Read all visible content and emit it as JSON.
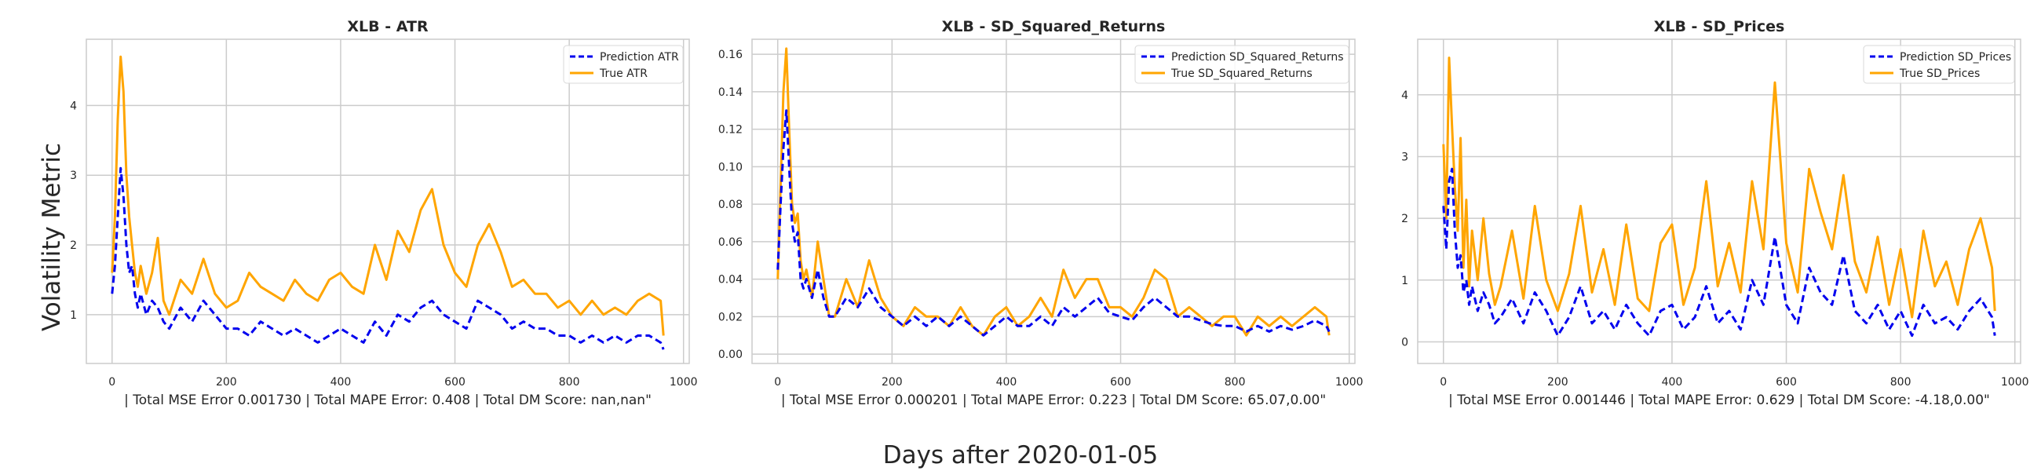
{
  "figure": {
    "supylabel": "Volatility Metric",
    "supxlabel": "Days after 2020-01-05"
  },
  "colors": {
    "prediction": "#0000ee",
    "true": "#ffa500",
    "grid": "#cccccc",
    "axes_border": "#cccccc"
  },
  "chart_data": [
    {
      "type": "line",
      "title": "XLB - ATR",
      "xlabel": "| Total MSE Error 0.001730 | Total MAPE Error: 0.408 | Total DM Score: nan,nan\"",
      "ylabel": "",
      "xlim": [
        -45,
        1010
      ],
      "ylim": [
        0.3,
        4.95
      ],
      "xticks": [
        0,
        200,
        400,
        600,
        800,
        1000
      ],
      "xtick_labels": [
        "0",
        "200",
        "400",
        "600",
        "800",
        "1000"
      ],
      "yticks": [
        1,
        2,
        3,
        4
      ],
      "ytick_labels": [
        "1",
        "2",
        "3",
        "4"
      ],
      "grid": true,
      "legend": "top-right",
      "series": [
        {
          "name": "Prediction ATR",
          "style": "dashed",
          "color": "#0000ee",
          "x": [
            0,
            5,
            10,
            15,
            20,
            25,
            30,
            35,
            40,
            45,
            50,
            60,
            70,
            80,
            90,
            100,
            120,
            140,
            160,
            180,
            200,
            220,
            240,
            260,
            280,
            300,
            320,
            340,
            360,
            380,
            400,
            420,
            440,
            460,
            480,
            500,
            520,
            540,
            560,
            580,
            600,
            620,
            640,
            660,
            680,
            700,
            720,
            740,
            760,
            780,
            800,
            820,
            840,
            860,
            880,
            900,
            920,
            940,
            960,
            965
          ],
          "y": [
            1.3,
            1.7,
            2.4,
            3.1,
            2.7,
            2.0,
            1.6,
            1.7,
            1.3,
            1.1,
            1.3,
            1.0,
            1.2,
            1.1,
            0.9,
            0.8,
            1.1,
            0.9,
            1.2,
            1.0,
            0.8,
            0.8,
            0.7,
            0.9,
            0.8,
            0.7,
            0.8,
            0.7,
            0.6,
            0.7,
            0.8,
            0.7,
            0.6,
            0.9,
            0.7,
            1.0,
            0.9,
            1.1,
            1.2,
            1.0,
            0.9,
            0.8,
            1.2,
            1.1,
            1.0,
            0.8,
            0.9,
            0.8,
            0.8,
            0.7,
            0.7,
            0.6,
            0.7,
            0.6,
            0.7,
            0.6,
            0.7,
            0.7,
            0.6,
            0.5
          ]
        },
        {
          "name": "True ATR",
          "style": "solid",
          "color": "#ffa500",
          "x": [
            0,
            5,
            10,
            15,
            20,
            25,
            30,
            35,
            40,
            45,
            50,
            60,
            70,
            80,
            90,
            100,
            120,
            140,
            160,
            180,
            200,
            220,
            240,
            260,
            280,
            300,
            320,
            340,
            360,
            380,
            400,
            420,
            440,
            460,
            480,
            500,
            520,
            540,
            560,
            580,
            600,
            620,
            640,
            660,
            680,
            700,
            720,
            740,
            760,
            780,
            800,
            820,
            840,
            860,
            880,
            900,
            920,
            940,
            960,
            965
          ],
          "y": [
            1.6,
            2.4,
            3.8,
            4.7,
            4.2,
            3.0,
            2.4,
            2.0,
            1.6,
            1.4,
            1.7,
            1.3,
            1.6,
            2.1,
            1.2,
            1.0,
            1.5,
            1.3,
            1.8,
            1.3,
            1.1,
            1.2,
            1.6,
            1.4,
            1.3,
            1.2,
            1.5,
            1.3,
            1.2,
            1.5,
            1.6,
            1.4,
            1.3,
            2.0,
            1.5,
            2.2,
            1.9,
            2.5,
            2.8,
            2.0,
            1.6,
            1.4,
            2.0,
            2.3,
            1.9,
            1.4,
            1.5,
            1.3,
            1.3,
            1.1,
            1.2,
            1.0,
            1.2,
            1.0,
            1.1,
            1.0,
            1.2,
            1.3,
            1.2,
            0.7
          ]
        }
      ]
    },
    {
      "type": "line",
      "title": "XLB - SD_Squared_Returns",
      "xlabel": "| Total MSE Error 0.000201 | Total MAPE Error: 0.223 | Total DM Score: 65.07,0.00\"",
      "ylabel": "",
      "xlim": [
        -45,
        1010
      ],
      "ylim": [
        -0.005,
        0.168
      ],
      "xticks": [
        0,
        200,
        400,
        600,
        800,
        1000
      ],
      "xtick_labels": [
        "0",
        "200",
        "400",
        "600",
        "800",
        "1000"
      ],
      "yticks": [
        0.0,
        0.02,
        0.04,
        0.06,
        0.08,
        0.1,
        0.12,
        0.14,
        0.16
      ],
      "ytick_labels": [
        "0.00",
        "0.02",
        "0.04",
        "0.06",
        "0.08",
        "0.10",
        "0.12",
        "0.14",
        "0.16"
      ],
      "grid": true,
      "legend": "top-right",
      "series": [
        {
          "name": "Prediction SD_Squared_Returns",
          "style": "dashed",
          "color": "#0000ee",
          "x": [
            0,
            5,
            10,
            15,
            20,
            25,
            30,
            35,
            40,
            45,
            50,
            60,
            70,
            80,
            90,
            100,
            120,
            140,
            160,
            180,
            200,
            220,
            240,
            260,
            280,
            300,
            320,
            340,
            360,
            380,
            400,
            420,
            440,
            460,
            480,
            500,
            520,
            540,
            560,
            580,
            600,
            620,
            640,
            660,
            680,
            700,
            720,
            740,
            760,
            780,
            800,
            820,
            840,
            860,
            880,
            900,
            920,
            940,
            960,
            965
          ],
          "y": [
            0.045,
            0.08,
            0.11,
            0.13,
            0.1,
            0.07,
            0.06,
            0.065,
            0.04,
            0.035,
            0.04,
            0.03,
            0.045,
            0.03,
            0.02,
            0.02,
            0.03,
            0.025,
            0.035,
            0.025,
            0.02,
            0.015,
            0.02,
            0.015,
            0.02,
            0.015,
            0.02,
            0.015,
            0.01,
            0.015,
            0.02,
            0.015,
            0.015,
            0.02,
            0.015,
            0.025,
            0.02,
            0.025,
            0.03,
            0.022,
            0.02,
            0.018,
            0.025,
            0.03,
            0.025,
            0.02,
            0.02,
            0.018,
            0.016,
            0.015,
            0.015,
            0.012,
            0.015,
            0.012,
            0.015,
            0.013,
            0.015,
            0.018,
            0.015,
            0.012
          ]
        },
        {
          "name": "True SD_Squared_Returns",
          "style": "solid",
          "color": "#ffa500",
          "x": [
            0,
            5,
            10,
            15,
            20,
            25,
            30,
            35,
            40,
            45,
            50,
            60,
            70,
            80,
            90,
            100,
            120,
            140,
            160,
            180,
            200,
            220,
            240,
            260,
            280,
            300,
            320,
            340,
            360,
            380,
            400,
            420,
            440,
            460,
            480,
            500,
            520,
            540,
            560,
            580,
            600,
            620,
            640,
            660,
            680,
            700,
            720,
            740,
            760,
            780,
            800,
            820,
            840,
            860,
            880,
            900,
            920,
            940,
            960,
            965
          ],
          "y": [
            0.04,
            0.09,
            0.14,
            0.163,
            0.12,
            0.08,
            0.07,
            0.075,
            0.05,
            0.04,
            0.045,
            0.03,
            0.06,
            0.04,
            0.02,
            0.02,
            0.04,
            0.025,
            0.05,
            0.03,
            0.02,
            0.015,
            0.025,
            0.02,
            0.02,
            0.015,
            0.025,
            0.015,
            0.01,
            0.02,
            0.025,
            0.015,
            0.02,
            0.03,
            0.02,
            0.045,
            0.03,
            0.04,
            0.04,
            0.025,
            0.025,
            0.02,
            0.03,
            0.045,
            0.04,
            0.02,
            0.025,
            0.02,
            0.015,
            0.02,
            0.02,
            0.01,
            0.02,
            0.015,
            0.02,
            0.015,
            0.02,
            0.025,
            0.02,
            0.01
          ]
        }
      ]
    },
    {
      "type": "line",
      "title": "XLB - SD_Prices",
      "xlabel": "| Total MSE Error 0.001446 | Total MAPE Error: 0.629 | Total DM Score: -4.18,0.00\"",
      "ylabel": "",
      "xlim": [
        -45,
        1010
      ],
      "ylim": [
        -0.35,
        4.9
      ],
      "xticks": [
        0,
        200,
        400,
        600,
        800,
        1000
      ],
      "xtick_labels": [
        "0",
        "200",
        "400",
        "600",
        "800",
        "1000"
      ],
      "yticks": [
        0,
        1,
        2,
        3,
        4
      ],
      "ytick_labels": [
        "0",
        "1",
        "2",
        "3",
        "4"
      ],
      "grid": true,
      "legend": "top-right",
      "series": [
        {
          "name": "Prediction SD_Prices",
          "style": "dashed",
          "color": "#0000ee",
          "x": [
            0,
            5,
            10,
            15,
            20,
            25,
            30,
            35,
            40,
            45,
            50,
            60,
            70,
            80,
            90,
            100,
            120,
            140,
            160,
            180,
            200,
            220,
            240,
            260,
            280,
            300,
            320,
            340,
            360,
            380,
            400,
            420,
            440,
            460,
            480,
            500,
            520,
            540,
            560,
            580,
            600,
            620,
            640,
            660,
            680,
            700,
            720,
            740,
            760,
            780,
            800,
            820,
            840,
            860,
            880,
            900,
            920,
            940,
            960,
            965
          ],
          "y": [
            2.2,
            1.5,
            2.6,
            2.8,
            1.8,
            1.2,
            1.4,
            0.8,
            1.0,
            0.6,
            0.9,
            0.5,
            0.8,
            0.6,
            0.3,
            0.4,
            0.7,
            0.3,
            0.8,
            0.5,
            0.1,
            0.4,
            0.9,
            0.3,
            0.5,
            0.2,
            0.6,
            0.3,
            0.1,
            0.5,
            0.6,
            0.2,
            0.4,
            0.9,
            0.3,
            0.5,
            0.2,
            1.0,
            0.6,
            1.7,
            0.6,
            0.3,
            1.2,
            0.8,
            0.6,
            1.4,
            0.5,
            0.3,
            0.6,
            0.2,
            0.5,
            0.1,
            0.6,
            0.3,
            0.4,
            0.2,
            0.5,
            0.7,
            0.4,
            0.1
          ]
        },
        {
          "name": "True SD_Prices",
          "style": "solid",
          "color": "#ffa500",
          "x": [
            0,
            5,
            10,
            15,
            20,
            25,
            30,
            35,
            40,
            45,
            50,
            60,
            70,
            80,
            90,
            100,
            120,
            140,
            160,
            180,
            200,
            220,
            240,
            260,
            280,
            300,
            320,
            340,
            360,
            380,
            400,
            420,
            440,
            460,
            480,
            500,
            520,
            540,
            560,
            580,
            600,
            620,
            640,
            660,
            680,
            700,
            720,
            740,
            760,
            780,
            800,
            820,
            840,
            860,
            880,
            900,
            920,
            940,
            960,
            965
          ],
          "y": [
            3.2,
            2.0,
            4.6,
            3.5,
            2.5,
            1.8,
            3.3,
            1.2,
            2.3,
            0.9,
            1.8,
            1.0,
            2.0,
            1.1,
            0.6,
            0.9,
            1.8,
            0.7,
            2.2,
            1.0,
            0.5,
            1.1,
            2.2,
            0.8,
            1.5,
            0.6,
            1.9,
            0.7,
            0.5,
            1.6,
            1.9,
            0.6,
            1.2,
            2.6,
            0.9,
            1.6,
            0.8,
            2.6,
            1.5,
            4.2,
            1.6,
            0.8,
            2.8,
            2.1,
            1.5,
            2.7,
            1.3,
            0.8,
            1.7,
            0.6,
            1.5,
            0.4,
            1.8,
            0.9,
            1.3,
            0.6,
            1.5,
            2.0,
            1.2,
            0.5
          ]
        }
      ]
    }
  ]
}
